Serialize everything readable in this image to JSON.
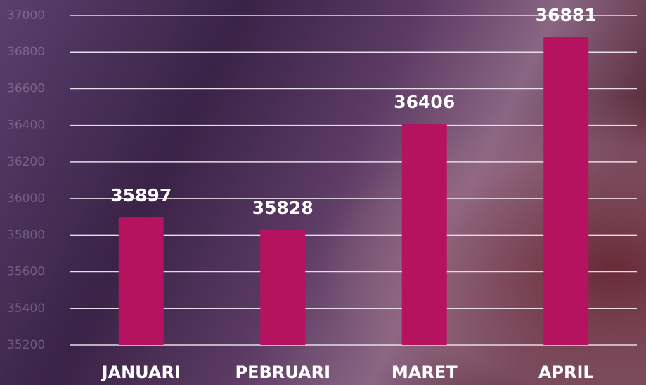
{
  "chart_data": {
    "type": "bar",
    "categories": [
      "JANUARI",
      "PEBRUARI",
      "MARET",
      "APRIL"
    ],
    "values": [
      35897,
      35828,
      36406,
      36881
    ],
    "color": "#b5135f",
    "ylim": [
      35200,
      37000
    ],
    "yticks": [
      35200,
      35400,
      35600,
      35800,
      36000,
      36200,
      36400,
      36600,
      36800,
      37000
    ],
    "grid": true
  }
}
